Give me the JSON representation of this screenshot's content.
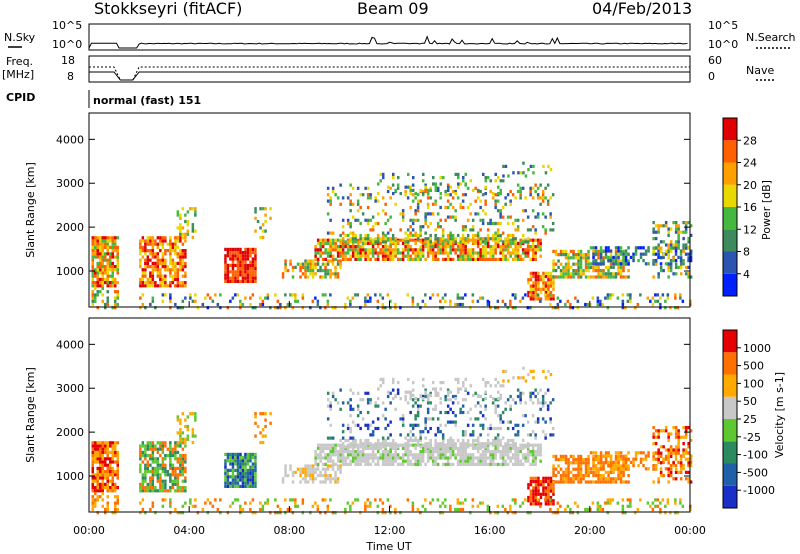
{
  "header": {
    "station": "Stokkseyri (fitACF)",
    "beam": "Beam 09",
    "date": "04/Feb/2013"
  },
  "strip": {
    "nsky_label": "N.Sky",
    "nsearch_label": "N.Search",
    "freq_label_1": "Freq.",
    "freq_label_2": "[MHz]",
    "nave_label": "Nave",
    "cpid_label": "CPID",
    "cpid_value": "normal (fast) 151",
    "nsky_ticks": [
      "10^5",
      "10^0"
    ],
    "nsearch_ticks": [
      "10^5",
      "10^0"
    ],
    "freq_ticks": [
      "18",
      "8"
    ],
    "nave_ticks": [
      "60",
      "0"
    ]
  },
  "colors": {
    "power": [
      "#0020ff",
      "#2a55b0",
      "#3d8a5c",
      "#45b840",
      "#e8d800",
      "#ffa000",
      "#ff6000",
      "#e00000"
    ],
    "velocity": [
      "#1a2ec8",
      "#2060a8",
      "#2b8a60",
      "#5ec830",
      "#c8c8c8",
      "#ffaa00",
      "#ff7000",
      "#e40000"
    ]
  },
  "chart_data": [
    {
      "type": "heatmap",
      "title": "",
      "xlabel": "",
      "ylabel": "Slant Range [km]",
      "colorbar_label": "Power [dB]",
      "colorbar_ticks": [
        "28",
        "24",
        "20",
        "16",
        "12",
        "8",
        "4"
      ],
      "xlim": [
        "00:00",
        "24:00"
      ],
      "ylim": [
        180,
        4600
      ],
      "y_ticks": [
        "4000",
        "3000",
        "2000",
        "1000"
      ],
      "x_ticks": [
        "00:00",
        "04:00",
        "08:00",
        "12:00",
        "16:00",
        "20:00",
        "00:00"
      ]
    },
    {
      "type": "heatmap",
      "title": "",
      "xlabel": "Time UT",
      "ylabel": "Slant Range [km]",
      "colorbar_label": "Velocity [m s-1]",
      "colorbar_ticks": [
        "1000",
        "500",
        "100",
        "50",
        "25",
        "-25",
        "-100",
        "-500",
        "-1000"
      ],
      "xlim": [
        "00:00",
        "24:00"
      ],
      "ylim": [
        180,
        4600
      ],
      "y_ticks": [
        "4000",
        "3000",
        "2000",
        "1000"
      ],
      "x_ticks": [
        "00:00",
        "04:00",
        "08:00",
        "12:00",
        "16:00",
        "20:00",
        "00:00"
      ]
    }
  ]
}
